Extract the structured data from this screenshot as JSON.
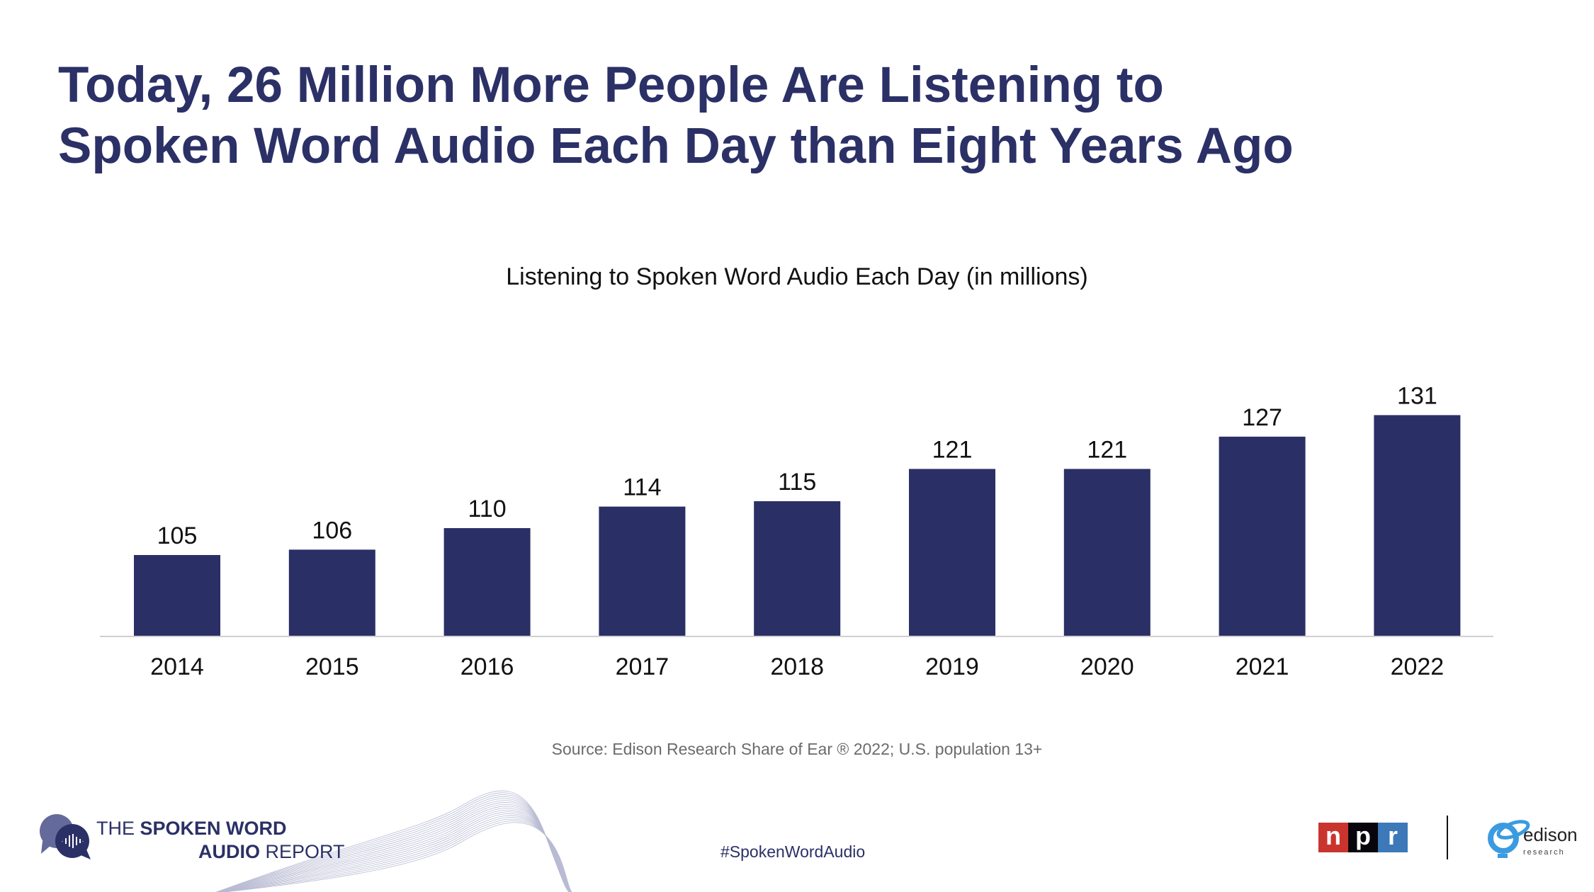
{
  "title_lines": [
    "Today, 26 Million More People Are Listening to",
    "Spoken Word Audio Each Day than Eight Years Ago"
  ],
  "chart_data": {
    "type": "bar",
    "title": "Listening to Spoken Word Audio Each Day (in millions)",
    "categories": [
      "2014",
      "2015",
      "2016",
      "2017",
      "2018",
      "2019",
      "2020",
      "2021",
      "2022"
    ],
    "values": [
      105,
      106,
      110,
      114,
      115,
      121,
      121,
      127,
      131
    ],
    "xlabel": "",
    "ylabel": "",
    "ylim": [
      90,
      135
    ],
    "grid": false,
    "bar_color": "#2a2f66"
  },
  "source": "Source: Edison Research Share of Ear ® 2022; U.S. population 13+",
  "footer": {
    "report_logo": {
      "line1_light": "THE ",
      "line1_bold": "SPOKEN WORD",
      "line2_bold": "AUDIO",
      "line2_light": " REPORT"
    },
    "hashtag": "#SpokenWordAudio",
    "npr_letters": [
      "n",
      "p",
      "r"
    ],
    "edison_word": "edison",
    "edison_sub": "research"
  }
}
